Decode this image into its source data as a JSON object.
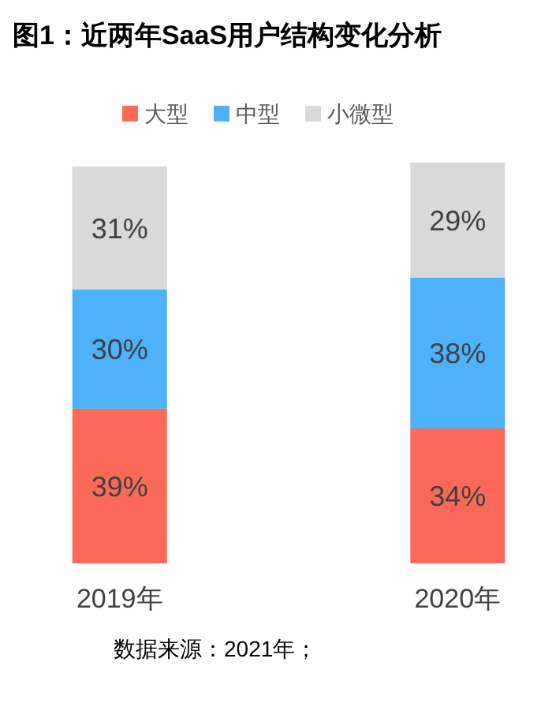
{
  "chart_data": {
    "type": "bar",
    "title": "图1：近两年SaaS用户结构变化分析",
    "categories": [
      "2019年",
      "2020年"
    ],
    "stacked": true,
    "ylim": [
      0,
      101
    ],
    "tick_labels": "x",
    "legend": "top",
    "series": [
      {
        "name": "大型",
        "color": "#fb6a58",
        "values": [
          39,
          34
        ],
        "value_labels": [
          "39%",
          "34%"
        ]
      },
      {
        "name": "中型",
        "color": "#4db1fc",
        "values": [
          30,
          38
        ],
        "value_labels": [
          "30%",
          "38%"
        ]
      },
      {
        "name": "小微型",
        "color": "#d9d9d9",
        "values": [
          31,
          29
        ],
        "value_labels": [
          "31%",
          "29%"
        ]
      }
    ],
    "annotations": [
      "数据来源：2021年；"
    ]
  }
}
